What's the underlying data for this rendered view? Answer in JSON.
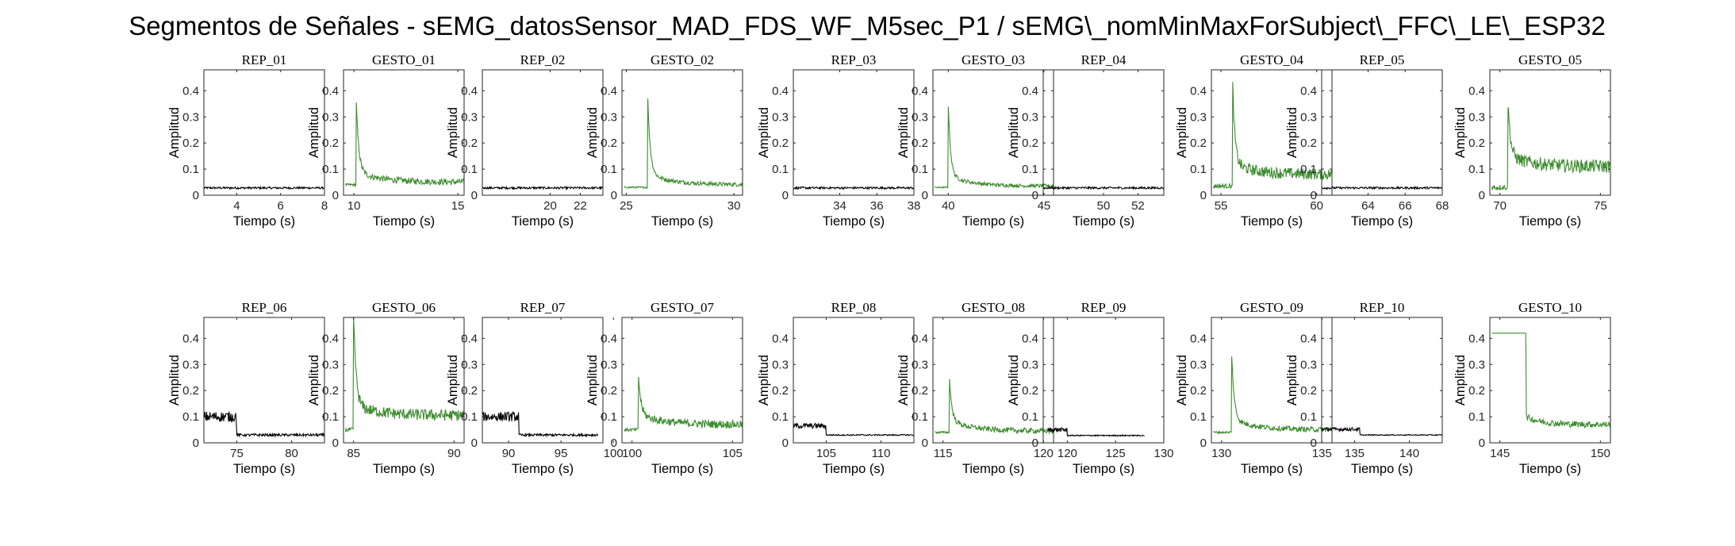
{
  "figure": {
    "title": "Segmentos de Señales - sEMG_datosSensor_MAD_FDS_WF_M5sec_P1 / sEMG\\_nomMinMaxForSubject\\_FFC\\_LE\\_ESP32",
    "background": "#ffffff"
  },
  "colors": {
    "rep": "#000000",
    "gesto": "#3c8c2e",
    "axis": "#262626"
  },
  "chart_data": [
    {
      "type": "line",
      "title": "REP_01",
      "xlabel": "Tiempo (s)",
      "ylabel": "Amplitud",
      "xlim": [
        2.5,
        8
      ],
      "ylim": [
        0,
        0.48
      ],
      "xticks": [
        4,
        6,
        8
      ],
      "yticks": [
        0,
        0.1,
        0.2,
        0.3,
        0.4
      ],
      "kind": "rep",
      "series": [
        {
          "x": [
            2.5,
            8
          ],
          "baseline": 0.028,
          "noise": 0.004
        }
      ]
    },
    {
      "type": "line",
      "title": "GESTO_01",
      "xlabel": "Tiempo (s)",
      "ylabel": "Amplitud",
      "xlim": [
        9.5,
        15.3
      ],
      "ylim": [
        0,
        0.48
      ],
      "xticks": [
        10,
        15
      ],
      "yticks": [
        0,
        0.1,
        0.2,
        0.3,
        0.4
      ],
      "kind": "gesto",
      "series": [
        {
          "x": [
            9.6,
            15.3
          ],
          "start": 0.04,
          "onset": 10.1,
          "peak": 0.35,
          "tail": 0.05,
          "noise": 0.012
        }
      ]
    },
    {
      "type": "line",
      "title": "REP_02",
      "xlabel": "Tiempo (s)",
      "ylabel": "Amplitud",
      "xlim": [
        15.5,
        23.5
      ],
      "ylim": [
        0,
        0.48
      ],
      "xticks": [
        20,
        22
      ],
      "yticks": [
        0,
        0.1,
        0.2,
        0.3,
        0.4
      ],
      "kind": "rep",
      "series": [
        {
          "x": [
            15.5,
            23.5
          ],
          "baseline": 0.028,
          "noise": 0.004
        }
      ]
    },
    {
      "type": "line",
      "title": "GESTO_02",
      "xlabel": "Tiempo (s)",
      "ylabel": "Amplitud",
      "xlim": [
        24.8,
        30.4
      ],
      "ylim": [
        0,
        0.48
      ],
      "xticks": [
        25,
        30
      ],
      "yticks": [
        0,
        0.1,
        0.2,
        0.3,
        0.4
      ],
      "kind": "gesto",
      "series": [
        {
          "x": [
            24.9,
            30.4
          ],
          "start": 0.03,
          "onset": 26.0,
          "peak": 0.325,
          "tail": 0.04,
          "noise": 0.008
        }
      ]
    },
    {
      "type": "line",
      "title": "REP_03",
      "xlabel": "Tiempo (s)",
      "ylabel": "Amplitud",
      "xlim": [
        31.5,
        38
      ],
      "ylim": [
        0,
        0.48
      ],
      "xticks": [
        34,
        36,
        38
      ],
      "yticks": [
        0,
        0.1,
        0.2,
        0.3,
        0.4
      ],
      "kind": "rep",
      "series": [
        {
          "x": [
            31.5,
            38
          ],
          "baseline": 0.028,
          "noise": 0.004
        }
      ]
    },
    {
      "type": "line",
      "title": "GESTO_03",
      "xlabel": "Tiempo (s)",
      "ylabel": "Amplitud",
      "xlim": [
        39.2,
        45.5
      ],
      "ylim": [
        0,
        0.48
      ],
      "xticks": [
        40,
        45
      ],
      "yticks": [
        0,
        0.1,
        0.2,
        0.3,
        0.4
      ],
      "kind": "gesto",
      "series": [
        {
          "x": [
            39.3,
            45.5
          ],
          "start": 0.03,
          "onset": 40.0,
          "peak": 0.315,
          "tail": 0.035,
          "noise": 0.007
        }
      ]
    },
    {
      "type": "line",
      "title": "REP_04",
      "xlabel": "Tiempo (s)",
      "ylabel": "Amplitud",
      "xlim": [
        46.5,
        53.5
      ],
      "ylim": [
        0,
        0.48
      ],
      "xticks": [
        50,
        52
      ],
      "yticks": [
        0,
        0.1,
        0.2,
        0.3,
        0.4
      ],
      "kind": "rep",
      "series": [
        {
          "x": [
            46.5,
            53.5
          ],
          "baseline": 0.028,
          "noise": 0.004
        }
      ]
    },
    {
      "type": "line",
      "title": "GESTO_04",
      "xlabel": "Tiempo (s)",
      "ylabel": "Amplitud",
      "xlim": [
        54.5,
        60.8
      ],
      "ylim": [
        0,
        0.48
      ],
      "xticks": [
        55,
        60
      ],
      "yticks": [
        0,
        0.1,
        0.2,
        0.3,
        0.4
      ],
      "kind": "gesto",
      "series": [
        {
          "x": [
            54.6,
            60.8
          ],
          "start": 0.035,
          "onset": 55.6,
          "peak": 0.415,
          "tail": 0.08,
          "noise": 0.022
        }
      ]
    },
    {
      "type": "line",
      "title": "REP_05",
      "xlabel": "Tiempo (s)",
      "ylabel": "Amplitud",
      "xlim": [
        61.5,
        68
      ],
      "ylim": [
        0,
        0.48
      ],
      "xticks": [
        64,
        66,
        68
      ],
      "yticks": [
        0,
        0.1,
        0.2,
        0.3,
        0.4
      ],
      "kind": "rep",
      "series": [
        {
          "x": [
            61.5,
            68
          ],
          "baseline": 0.028,
          "noise": 0.004
        }
      ]
    },
    {
      "type": "line",
      "title": "GESTO_05",
      "xlabel": "Tiempo (s)",
      "ylabel": "Amplitud",
      "xlim": [
        69.5,
        75.5
      ],
      "ylim": [
        0,
        0.48
      ],
      "xticks": [
        70,
        75
      ],
      "yticks": [
        0,
        0.1,
        0.2,
        0.3,
        0.4
      ],
      "kind": "gesto",
      "series": [
        {
          "x": [
            69.6,
            75.5
          ],
          "start": 0.03,
          "onset": 70.4,
          "peak": 0.325,
          "tail": 0.11,
          "noise": 0.025
        }
      ]
    },
    {
      "type": "line",
      "title": "REP_06",
      "xlabel": "Tiempo (s)",
      "ylabel": "Amplitud",
      "xlim": [
        72,
        83
      ],
      "ylim": [
        0,
        0.48
      ],
      "xticks": [
        75,
        80
      ],
      "yticks": [
        0,
        0.1,
        0.2,
        0.3,
        0.4
      ],
      "kind": "rep",
      "series": [
        {
          "x": [
            72,
            83
          ],
          "burst_end": 75.0,
          "burst_level": 0.1,
          "baseline": 0.03,
          "noise": 0.02
        }
      ]
    },
    {
      "type": "line",
      "title": "GESTO_06",
      "xlabel": "Tiempo (s)",
      "ylabel": "Amplitud",
      "xlim": [
        84.5,
        90.5
      ],
      "ylim": [
        0,
        0.48
      ],
      "xticks": [
        85,
        90
      ],
      "yticks": [
        0,
        0.1,
        0.2,
        0.3,
        0.4
      ],
      "kind": "gesto",
      "series": [
        {
          "x": [
            84.6,
            90.5
          ],
          "start": 0.05,
          "onset": 85.0,
          "peak": 0.47,
          "tail": 0.105,
          "noise": 0.022
        }
      ]
    },
    {
      "type": "line",
      "title": "REP_07",
      "xlabel": "Tiempo (s)",
      "ylabel": "Amplitud",
      "xlim": [
        87.5,
        99
      ],
      "ylim": [
        0,
        0.48
      ],
      "xticks": [
        90,
        95,
        100
      ],
      "yticks": [
        0,
        0.1,
        0.2,
        0.3,
        0.4
      ],
      "kind": "rep",
      "series": [
        {
          "x": [
            87.5,
            98.5
          ],
          "burst_end": 91.0,
          "burst_level": 0.1,
          "baseline": 0.03,
          "noise": 0.018
        }
      ]
    },
    {
      "type": "line",
      "title": "GESTO_07",
      "xlabel": "Tiempo (s)",
      "ylabel": "Amplitud",
      "xlim": [
        99.5,
        105.5
      ],
      "ylim": [
        0,
        0.48
      ],
      "xticks": [
        100,
        105
      ],
      "yticks": [
        0,
        0.1,
        0.2,
        0.3,
        0.4
      ],
      "kind": "gesto",
      "series": [
        {
          "x": [
            99.6,
            105.5
          ],
          "start": 0.05,
          "onset": 100.3,
          "peak": 0.25,
          "tail": 0.07,
          "noise": 0.015
        }
      ]
    },
    {
      "type": "line",
      "title": "REP_08",
      "xlabel": "Tiempo (s)",
      "ylabel": "Amplitud",
      "xlim": [
        102,
        113
      ],
      "ylim": [
        0,
        0.48
      ],
      "xticks": [
        105,
        110
      ],
      "yticks": [
        0,
        0.1,
        0.2,
        0.3,
        0.4
      ],
      "kind": "rep",
      "series": [
        {
          "x": [
            102,
            113
          ],
          "burst_end": 105.0,
          "burst_level": 0.065,
          "baseline": 0.03,
          "noise": 0.01
        }
      ]
    },
    {
      "type": "line",
      "title": "GESTO_08",
      "xlabel": "Tiempo (s)",
      "ylabel": "Amplitud",
      "xlim": [
        114.5,
        120.5
      ],
      "ylim": [
        0,
        0.48
      ],
      "xticks": [
        115,
        120
      ],
      "yticks": [
        0,
        0.1,
        0.2,
        0.3,
        0.4
      ],
      "kind": "gesto",
      "series": [
        {
          "x": [
            114.6,
            120.5
          ],
          "start": 0.04,
          "onset": 115.3,
          "peak": 0.24,
          "tail": 0.045,
          "noise": 0.01
        }
      ]
    },
    {
      "type": "line",
      "title": "REP_09",
      "xlabel": "Tiempo (s)",
      "ylabel": "Amplitud",
      "xlim": [
        117.5,
        130
      ],
      "ylim": [
        0,
        0.48
      ],
      "xticks": [
        120,
        125,
        130
      ],
      "yticks": [
        0,
        0.1,
        0.2,
        0.3,
        0.4
      ],
      "kind": "rep",
      "series": [
        {
          "x": [
            118,
            128
          ],
          "burst_end": 120.0,
          "burst_level": 0.05,
          "baseline": 0.028,
          "noise": 0.008
        }
      ]
    },
    {
      "type": "line",
      "title": "GESTO_09",
      "xlabel": "Tiempo (s)",
      "ylabel": "Amplitud",
      "xlim": [
        129.5,
        135.5
      ],
      "ylim": [
        0,
        0.48
      ],
      "xticks": [
        130,
        135
      ],
      "yticks": [
        0,
        0.1,
        0.2,
        0.3,
        0.4
      ],
      "kind": "gesto",
      "series": [
        {
          "x": [
            129.6,
            135.5
          ],
          "start": 0.04,
          "onset": 130.5,
          "peak": 0.325,
          "tail": 0.05,
          "noise": 0.01
        }
      ]
    },
    {
      "type": "line",
      "title": "REP_10",
      "xlabel": "Tiempo (s)",
      "ylabel": "Amplitud",
      "xlim": [
        132,
        143
      ],
      "ylim": [
        0,
        0.48
      ],
      "xticks": [
        135,
        140
      ],
      "yticks": [
        0,
        0.1,
        0.2,
        0.3,
        0.4
      ],
      "kind": "rep",
      "series": [
        {
          "x": [
            132,
            143
          ],
          "burst_end": 135.5,
          "burst_level": 0.052,
          "baseline": 0.03,
          "noise": 0.007
        }
      ]
    },
    {
      "type": "line",
      "title": "GESTO_10",
      "xlabel": "Tiempo (s)",
      "ylabel": "Amplitud",
      "xlim": [
        144.5,
        150.5
      ],
      "ylim": [
        0,
        0.48
      ],
      "xticks": [
        145,
        150
      ],
      "yticks": [
        0,
        0.1,
        0.2,
        0.3,
        0.4
      ],
      "kind": "gesto",
      "series": [
        {
          "x": [
            144.6,
            150.5
          ],
          "step_level": 0.42,
          "step_end": 146.3,
          "tail": 0.07,
          "noise": 0.012
        }
      ]
    }
  ]
}
